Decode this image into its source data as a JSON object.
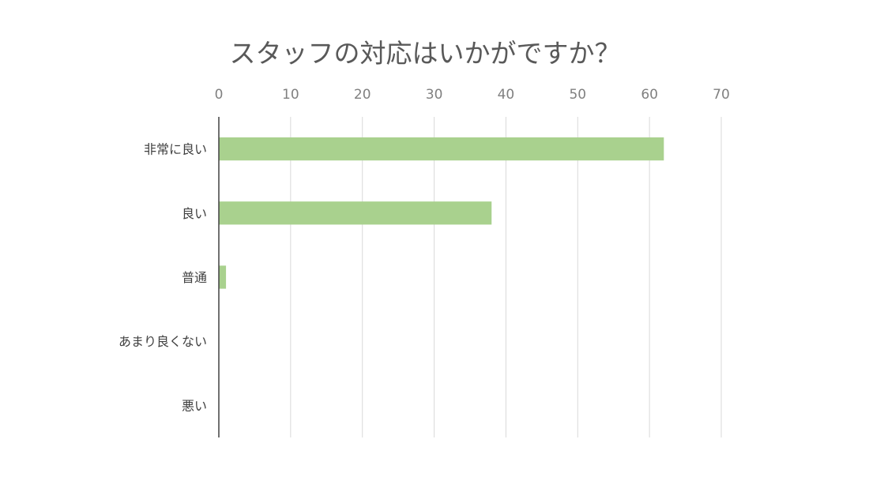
{
  "chart_data": {
    "type": "bar",
    "orientation": "horizontal",
    "title": "スタッフの対応はいかがですか？",
    "categories": [
      "非常に良い",
      "良い",
      "普通",
      "あまり良くない",
      "悪い"
    ],
    "values": [
      62,
      38,
      1,
      0,
      0
    ],
    "xlim": [
      0,
      70
    ],
    "xticks": [
      "0",
      "10",
      "20",
      "30",
      "40",
      "50",
      "60",
      "70"
    ],
    "x_axis_position": "top",
    "grid": true,
    "legend": "none",
    "bar_color": "#a9d18e"
  }
}
